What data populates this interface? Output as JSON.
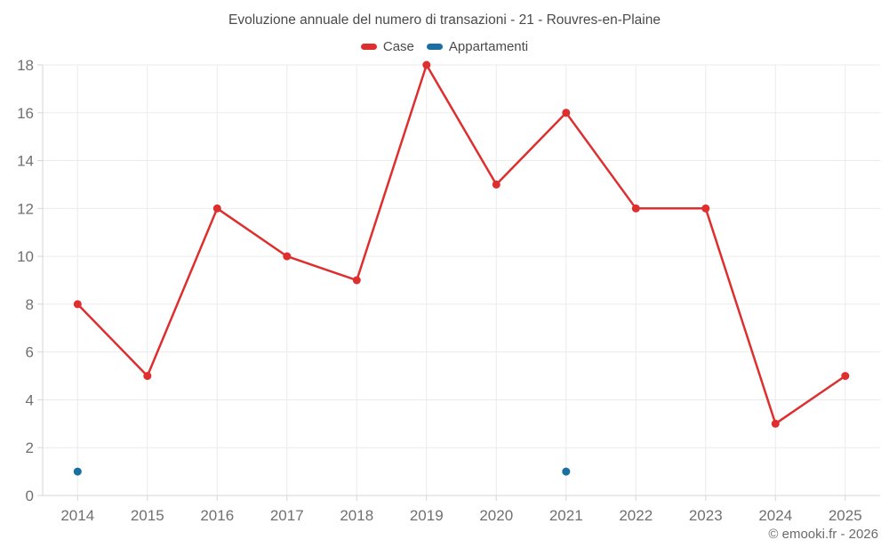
{
  "page": {
    "footer": "© emooki.fr - 2026"
  },
  "chart_data": {
    "type": "line",
    "title": "Evoluzione annuale del numero di transazioni - 21 - Rouvres-en-Plaine",
    "categories": [
      "2014",
      "2015",
      "2016",
      "2017",
      "2018",
      "2019",
      "2020",
      "2021",
      "2022",
      "2023",
      "2024",
      "2025"
    ],
    "series": [
      {
        "name": "Case",
        "color": "#de2e2e",
        "values": [
          8,
          5,
          12,
          10,
          9,
          18,
          13,
          16,
          12,
          12,
          3,
          5
        ]
      },
      {
        "name": "Appartamenti",
        "color": "#1a6fa3",
        "values": [
          1,
          null,
          null,
          null,
          null,
          null,
          null,
          1,
          null,
          null,
          null,
          null
        ]
      }
    ],
    "xlabel": "",
    "ylabel": "",
    "ylim": [
      0,
      18
    ],
    "ytick_step": 2,
    "grid": true,
    "legend_position": "top"
  }
}
